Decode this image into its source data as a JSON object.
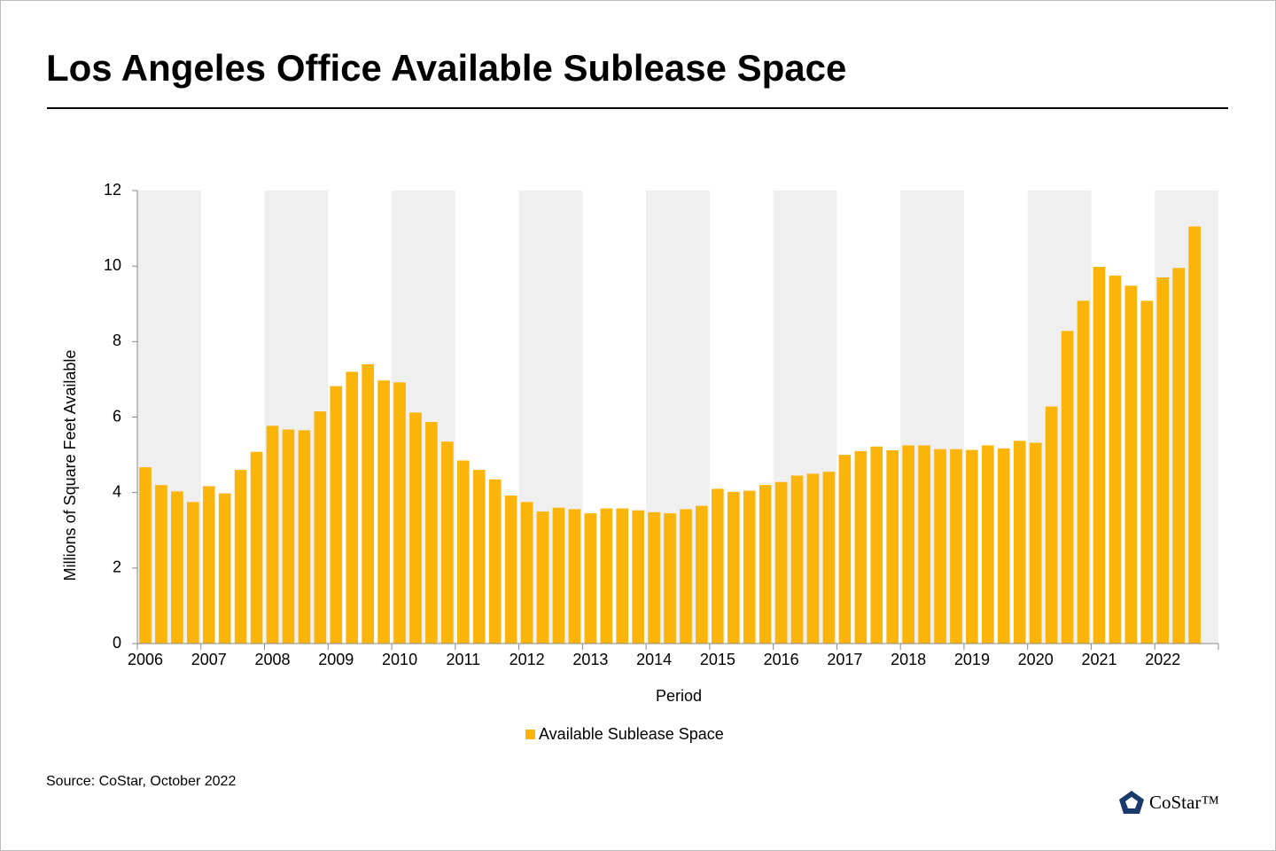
{
  "chart_data": {
    "type": "bar",
    "title": "Los Angeles Office Available Sublease Space",
    "x_label": "Period",
    "y_label": "Millions of Square Feet Available",
    "source": "Source: CoStar, October 2022",
    "logo": "CoStar™",
    "categories": [
      "2006",
      null,
      null,
      null,
      "2007",
      null,
      null,
      null,
      "2008",
      null,
      null,
      null,
      "2009",
      null,
      null,
      null,
      "2010",
      null,
      null,
      null,
      "2011",
      null,
      null,
      null,
      "2012",
      null,
      null,
      null,
      "2013",
      null,
      null,
      null,
      "2014",
      null,
      null,
      null,
      "2015",
      null,
      null,
      null,
      "2016",
      null,
      null,
      null,
      "2017",
      null,
      null,
      null,
      "2018",
      null,
      null,
      null,
      "2019",
      null,
      null,
      null,
      "2020",
      null,
      null,
      null,
      "2021",
      null,
      null,
      null,
      "2022",
      null,
      null
    ],
    "series": [
      {
        "name": "Available Sublease Space",
        "color": "#fbb40a",
        "values": [
          4.67,
          4.2,
          4.03,
          3.75,
          4.17,
          3.98,
          4.6,
          5.08,
          5.77,
          5.67,
          5.65,
          6.15,
          6.82,
          7.2,
          7.4,
          6.97,
          6.92,
          6.12,
          5.87,
          5.35,
          4.85,
          4.6,
          4.35,
          3.92,
          3.75,
          3.5,
          3.6,
          3.56,
          3.45,
          3.58,
          3.58,
          3.53,
          3.48,
          3.45,
          3.56,
          3.65,
          4.1,
          4.02,
          4.05,
          4.2,
          4.28,
          4.45,
          4.5,
          4.55,
          5.0,
          5.1,
          5.22,
          5.12,
          5.25,
          5.25,
          5.15,
          5.15,
          5.13,
          5.25,
          5.17,
          5.37,
          5.32,
          6.28,
          8.28,
          9.08,
          9.98,
          9.75,
          9.48,
          9.08,
          9.7,
          9.95,
          11.05
        ]
      }
    ],
    "ylim": [
      0,
      12
    ],
    "yticks": [
      0,
      2,
      4,
      6,
      8,
      10,
      12
    ],
    "alternate_bands": true,
    "legend": "bottom"
  }
}
